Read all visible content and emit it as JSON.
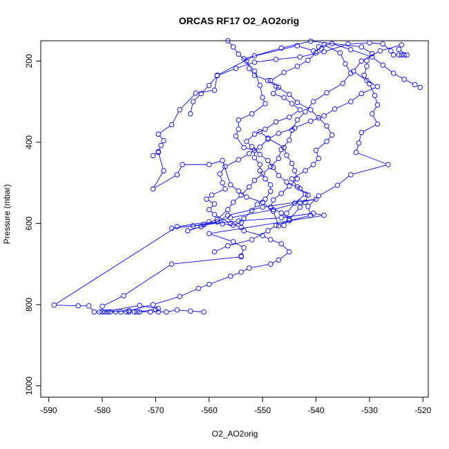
{
  "chart_data": {
    "type": "line",
    "title": "ORCAS RF17 O2_AO2orig",
    "xlabel": "O2_AO2orig",
    "ylabel": "Pressure (mbar)",
    "xlim": [
      -591.5,
      -519.0
    ],
    "ylim": [
      1028,
      150
    ],
    "y_inverted": true,
    "x_ticks": [
      -590,
      -580,
      -570,
      -560,
      -550,
      -540,
      -530,
      -520
    ],
    "y_ticks": [
      200,
      400,
      600,
      800,
      1000
    ],
    "grid": false,
    "legend": "none",
    "series": [
      {
        "color": "#0000ff",
        "marker": "open-circle",
        "points": [
          [
            -561.0,
            818
          ],
          [
            -563.5,
            816
          ],
          [
            -566.0,
            813
          ],
          [
            -568.0,
            818
          ],
          [
            -569.5,
            818
          ],
          [
            -571.0,
            818
          ],
          [
            -573.0,
            818
          ],
          [
            -574.0,
            818
          ],
          [
            -575.0,
            818
          ],
          [
            -575.5,
            818
          ],
          [
            -576.5,
            818
          ],
          [
            -577.5,
            818
          ],
          [
            -578.5,
            818
          ],
          [
            -579.5,
            818
          ],
          [
            -580.5,
            818
          ],
          [
            -581.5,
            818
          ],
          [
            -582.5,
            803
          ],
          [
            -584.5,
            803
          ],
          [
            -589.0,
            801
          ],
          [
            -566.0,
            608
          ],
          [
            -560.0,
            596
          ],
          [
            -557.5,
            601
          ],
          [
            -555.5,
            604
          ],
          [
            -554.0,
            598
          ],
          [
            -553.5,
            588
          ],
          [
            -552.0,
            568
          ],
          [
            -551.0,
            553
          ],
          [
            -549.5,
            540
          ],
          [
            -548.5,
            521
          ],
          [
            -548.5,
            505
          ],
          [
            -549.5,
            490
          ],
          [
            -550.5,
            470
          ],
          [
            -550.5,
            455
          ],
          [
            -551.5,
            438
          ],
          [
            -551.5,
            420
          ],
          [
            -553.5,
            413
          ],
          [
            -555.0,
            385
          ],
          [
            -554.5,
            368
          ],
          [
            -554.5,
            345
          ],
          [
            -552.0,
            330
          ],
          [
            -549.5,
            305
          ],
          [
            -550.0,
            290
          ],
          [
            -550.5,
            260
          ],
          [
            -551.5,
            225
          ],
          [
            -553.5,
            194
          ],
          [
            -543.5,
            162
          ],
          [
            -540.5,
            175
          ],
          [
            -539.0,
            170
          ],
          [
            -538.5,
            160
          ],
          [
            -535.5,
            180
          ],
          [
            -534.5,
            207
          ],
          [
            -533.5,
            230
          ],
          [
            -535.0,
            255
          ],
          [
            -538.0,
            278
          ],
          [
            -540.5,
            300
          ],
          [
            -542.0,
            325
          ],
          [
            -543.5,
            345
          ],
          [
            -544.5,
            370
          ],
          [
            -545.0,
            395
          ],
          [
            -546.5,
            418
          ],
          [
            -547.0,
            440
          ],
          [
            -548.5,
            460
          ],
          [
            -550.0,
            478
          ],
          [
            -551.5,
            494
          ],
          [
            -552.5,
            510
          ],
          [
            -554.0,
            530
          ],
          [
            -555.5,
            548
          ],
          [
            -556.5,
            566
          ],
          [
            -558.5,
            590
          ],
          [
            -561.0,
            603
          ],
          [
            -561.5,
            608
          ],
          [
            -564.0,
            618
          ],
          [
            -556.0,
            586
          ],
          [
            -548.0,
            566
          ],
          [
            -543.0,
            548
          ],
          [
            -540.0,
            540
          ],
          [
            -550.0,
            560
          ],
          [
            -556.5,
            580
          ],
          [
            -558.5,
            596
          ],
          [
            -563.0,
            606
          ],
          [
            -567.0,
            612
          ],
          [
            -554.5,
            594
          ],
          [
            -546.5,
            586
          ],
          [
            -540.5,
            575
          ],
          [
            -538.5,
            580
          ],
          [
            -560.0,
            625
          ],
          [
            -555.5,
            645
          ],
          [
            -553.5,
            660
          ],
          [
            -554.0,
            680
          ],
          [
            -554.0,
            682
          ],
          [
            -567.0,
            700
          ],
          [
            -576.0,
            778
          ],
          [
            -580.0,
            804
          ],
          [
            -580.0,
            818
          ],
          [
            -573.0,
            802
          ],
          [
            -569.5,
            810
          ],
          [
            -570.0,
            812
          ],
          [
            -573.5,
            818
          ]
        ]
      },
      {
        "color": "#0000ff",
        "marker": "open-circle",
        "points": [
          [
            -570.5,
            433
          ],
          [
            -569.5,
            423
          ],
          [
            -569.0,
            408
          ],
          [
            -568.5,
            396
          ],
          [
            -569.5,
            380
          ],
          [
            -567.0,
            357
          ],
          [
            -565.5,
            320
          ],
          [
            -562.5,
            279
          ],
          [
            -559.0,
            272
          ],
          [
            -558.5,
            235
          ],
          [
            -551.5,
            187
          ],
          [
            -546.5,
            168
          ],
          [
            -541.0,
            151
          ],
          [
            -531.5,
            165
          ],
          [
            -529.5,
            182
          ],
          [
            -530.5,
            199
          ],
          [
            -530.5,
            213
          ],
          [
            -531.0,
            235
          ],
          [
            -530.0,
            256
          ],
          [
            -529.0,
            285
          ],
          [
            -528.5,
            308
          ],
          [
            -529.5,
            330
          ],
          [
            -528.5,
            355
          ],
          [
            -531.5,
            376
          ],
          [
            -532.0,
            402
          ],
          [
            -532.5,
            425
          ],
          [
            -526.5,
            455
          ],
          [
            -533.5,
            480
          ],
          [
            -536.0,
            506
          ],
          [
            -539.5,
            532
          ],
          [
            -541.5,
            558
          ],
          [
            -541.0,
            580
          ],
          [
            -545.0,
            593
          ],
          [
            -547.5,
            605
          ],
          [
            -549.0,
            618
          ],
          [
            -552.0,
            640
          ],
          [
            -556.5,
            655
          ],
          [
            -559.0,
            670
          ]
        ]
      },
      {
        "color": "#0000ff",
        "marker": "open-circle",
        "points": [
          [
            -569.5,
            425
          ],
          [
            -568.5,
            470
          ],
          [
            -570.5,
            515
          ],
          [
            -566.0,
            480
          ],
          [
            -565.0,
            455
          ],
          [
            -560.0,
            455
          ],
          [
            -557.5,
            445
          ],
          [
            -556.0,
            505
          ],
          [
            -554.5,
            520
          ],
          [
            -553.0,
            535
          ],
          [
            -550.0,
            548
          ],
          [
            -548.0,
            570
          ],
          [
            -547.0,
            606
          ],
          [
            -546.0,
            605
          ],
          [
            -545.0,
            590
          ],
          [
            -545.5,
            575
          ],
          [
            -544.0,
            550
          ],
          [
            -542.0,
            528
          ],
          [
            -543.5,
            510
          ],
          [
            -544.5,
            490
          ],
          [
            -542.0,
            470
          ],
          [
            -540.5,
            455
          ],
          [
            -539.5,
            440
          ],
          [
            -540.0,
            420
          ],
          [
            -538.0,
            398
          ],
          [
            -537.0,
            382
          ],
          [
            -538.0,
            360
          ],
          [
            -539.5,
            340
          ],
          [
            -541.0,
            320
          ],
          [
            -543.5,
            302
          ],
          [
            -545.0,
            282
          ],
          [
            -547.5,
            262
          ],
          [
            -549.0,
            248
          ],
          [
            -551.5,
            235
          ],
          [
            -552.5,
            218
          ],
          [
            -553.0,
            200
          ],
          [
            -554.5,
            183
          ],
          [
            -555.5,
            165
          ],
          [
            -556.5,
            150
          ]
        ]
      },
      {
        "color": "#0000ff",
        "marker": "open-circle",
        "points": [
          [
            -563.5,
            330
          ],
          [
            -563.0,
            300
          ],
          [
            -561.5,
            280
          ],
          [
            -560.0,
            260
          ],
          [
            -558.5,
            236
          ],
          [
            -555.0,
            218
          ],
          [
            -551.5,
            203
          ],
          [
            -547.5,
            196
          ],
          [
            -543.0,
            190
          ],
          [
            -538.5,
            177
          ],
          [
            -534.0,
            158
          ],
          [
            -530.0,
            155
          ],
          [
            -527.5,
            158
          ],
          [
            -526.0,
            175
          ],
          [
            -525.5,
            185
          ],
          [
            -524.5,
            185
          ],
          [
            -524.0,
            185
          ],
          [
            -523.5,
            185
          ],
          [
            -523.0,
            185
          ],
          [
            -524.5,
            171
          ],
          [
            -524.0,
            160
          ],
          [
            -528.0,
            175
          ],
          [
            -531.5,
            200
          ],
          [
            -533.0,
            225
          ],
          [
            -530.5,
            248
          ],
          [
            -528.5,
            263
          ],
          [
            -531.5,
            280
          ],
          [
            -533.5,
            300
          ],
          [
            -536.5,
            318
          ],
          [
            -538.5,
            335
          ],
          [
            -541.0,
            348
          ],
          [
            -544.0,
            365
          ],
          [
            -547.0,
            378
          ],
          [
            -549.0,
            392
          ],
          [
            -550.5,
            412
          ],
          [
            -552.5,
            428
          ],
          [
            -554.5,
            443
          ],
          [
            -557.0,
            460
          ],
          [
            -558.0,
            478
          ],
          [
            -557.5,
            500
          ],
          [
            -557.0,
            515
          ],
          [
            -559.5,
            530
          ],
          [
            -560.5,
            540
          ],
          [
            -559.0,
            552
          ],
          [
            -560.0,
            566
          ],
          [
            -559.0,
            578
          ],
          [
            -556.0,
            600
          ],
          [
            -554.0,
            610
          ],
          [
            -553.5,
            618
          ],
          [
            -550.0,
            630
          ],
          [
            -548.5,
            640
          ],
          [
            -546.5,
            650
          ],
          [
            -545.0,
            670
          ],
          [
            -547.0,
            690
          ],
          [
            -548.5,
            700
          ],
          [
            -552.5,
            710
          ],
          [
            -554.0,
            720
          ],
          [
            -556.0,
            730
          ],
          [
            -560.0,
            750
          ],
          [
            -562.0,
            760
          ],
          [
            -565.5,
            780
          ],
          [
            -570.5,
            800
          ],
          [
            -575.0,
            815
          ],
          [
            -579.0,
            818
          ]
        ]
      },
      {
        "color": "#0000ff",
        "marker": "open-circle",
        "points": [
          [
            -550.5,
            374
          ],
          [
            -549.0,
            390
          ],
          [
            -546.0,
            413
          ],
          [
            -545.5,
            432
          ],
          [
            -544.5,
            452
          ],
          [
            -544.0,
            470
          ],
          [
            -543.5,
            490
          ],
          [
            -545.0,
            508
          ],
          [
            -546.5,
            526
          ],
          [
            -548.0,
            542
          ],
          [
            -548.5,
            560
          ],
          [
            -546.5,
            574
          ],
          [
            -545.0,
            590
          ],
          [
            -543.0,
            560
          ],
          [
            -542.0,
            548
          ],
          [
            -541.5,
            530
          ],
          [
            -543.0,
            514
          ],
          [
            -545.5,
            498
          ],
          [
            -547.0,
            482
          ],
          [
            -548.0,
            462
          ],
          [
            -549.0,
            445
          ],
          [
            -550.5,
            430
          ],
          [
            -552.0,
            411
          ],
          [
            -553.0,
            398
          ],
          [
            -551.5,
            380
          ],
          [
            -549.5,
            368
          ],
          [
            -547.5,
            350
          ],
          [
            -545.0,
            338
          ],
          [
            -543.0,
            320
          ],
          [
            -544.5,
            305
          ],
          [
            -546.0,
            290
          ],
          [
            -548.0,
            280
          ],
          [
            -547.0,
            265
          ],
          [
            -548.5,
            248
          ],
          [
            -546.0,
            228
          ],
          [
            -543.5,
            213
          ],
          [
            -541.5,
            198
          ],
          [
            -540.0,
            180
          ],
          [
            -539.5,
            165
          ],
          [
            -537.0,
            157
          ],
          [
            -533.5,
            172
          ],
          [
            -529.5,
            190
          ],
          [
            -527.5,
            210
          ],
          [
            -525.5,
            230
          ],
          [
            -523.5,
            245
          ],
          [
            -521.5,
            258
          ],
          [
            -520.5,
            265
          ]
        ]
      }
    ]
  }
}
